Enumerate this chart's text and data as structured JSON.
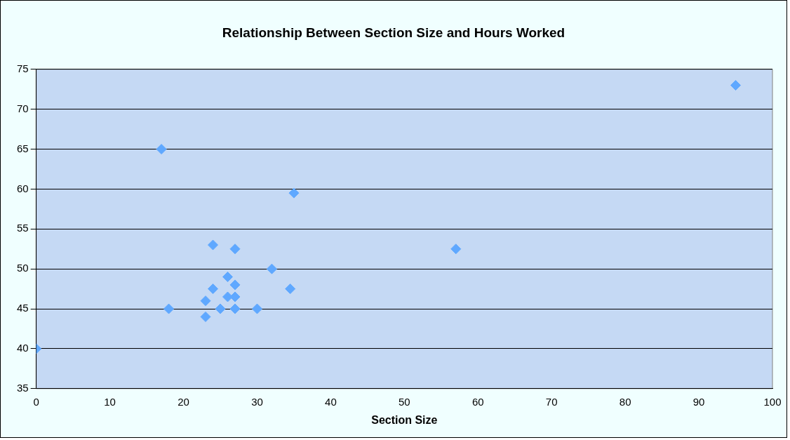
{
  "chart_data": {
    "type": "scatter",
    "title": "Relationship Between Section Size and Hours Worked",
    "xlabel": "Section Size",
    "x": [
      0,
      17,
      18,
      23,
      23,
      24,
      24,
      25,
      26,
      26,
      27,
      27,
      27,
      27,
      30,
      32,
      34.5,
      35,
      57,
      95
    ],
    "values": [
      40,
      65,
      45,
      46,
      44,
      47.5,
      53,
      45,
      49,
      46.5,
      52.5,
      48,
      46.5,
      45,
      45,
      50,
      47.5,
      59.5,
      52.5,
      73
    ],
    "color": "#5fa8ff",
    "marker": "diamond",
    "xlim": [
      0,
      100
    ],
    "xticks": [
      0,
      10,
      20,
      30,
      40,
      50,
      60,
      70,
      80,
      90,
      100
    ],
    "ylim": [
      35,
      75
    ],
    "yticks": [
      35,
      40,
      45,
      50,
      55,
      60,
      65,
      70,
      75
    ],
    "grid": "y",
    "legend": false
  }
}
